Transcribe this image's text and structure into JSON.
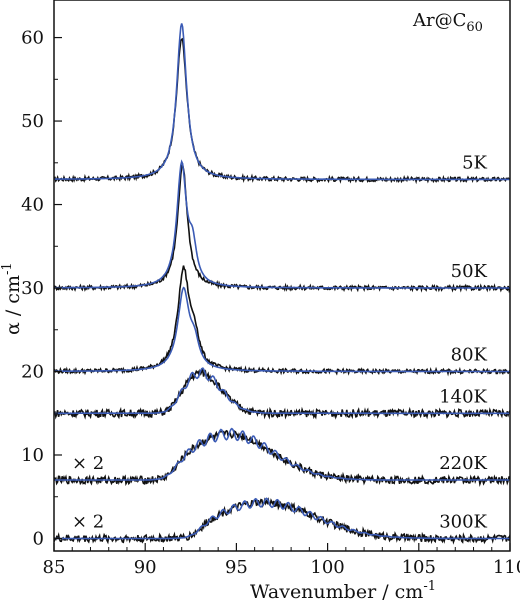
{
  "chart_data": {
    "type": "line",
    "title": "",
    "annotation_title": "Ar@C",
    "annotation_title_sub": "60",
    "xlabel": "Wavenumber / cm",
    "xlabel_sup": "-1",
    "ylabel": "α / cm",
    "ylabel_sup": "-1",
    "xlim": [
      85,
      110
    ],
    "ylim": [
      -1.5,
      64.5
    ],
    "xticks": [
      85,
      90,
      95,
      100,
      105,
      110
    ],
    "yticks": [
      0,
      10,
      20,
      30,
      40,
      50,
      60
    ],
    "grid": false,
    "legend": "none",
    "series_colors": {
      "measured": "#111111",
      "model": "#3b5bb5"
    },
    "traces": [
      {
        "temperature": "5K",
        "baseline": 43.0,
        "multiplier": "",
        "measured": {
          "center": 92.0,
          "width": 0.35,
          "amplitude": 17.0,
          "shape": "single"
        },
        "model": {
          "center": 92.0,
          "width": 0.33,
          "amplitude": 18.7,
          "shape": "single"
        }
      },
      {
        "temperature": "50K",
        "baseline": 30.0,
        "multiplier": "",
        "measured": {
          "center": 92.05,
          "width": 0.32,
          "amplitude": 14.7,
          "shape": "single"
        },
        "model": {
          "center": 92.0,
          "width": 0.32,
          "amplitude": 14.5,
          "shape": "split"
        }
      },
      {
        "temperature": "80K",
        "baseline": 20.0,
        "multiplier": "",
        "measured": {
          "center": 92.1,
          "width": 0.38,
          "amplitude": 11.8,
          "shape": "split"
        },
        "model": {
          "center": 92.1,
          "width": 0.38,
          "amplitude": 9.5,
          "shape": "split"
        }
      },
      {
        "temperature": "140K",
        "baseline": 15.0,
        "multiplier": "",
        "measured": {
          "center": 93.0,
          "width": 1.6,
          "amplitude": 4.9,
          "shape": "broad"
        },
        "model": {
          "center": 93.0,
          "width": 1.6,
          "amplitude": 4.9,
          "shape": "broad-oscillating"
        }
      },
      {
        "temperature": "220K",
        "baseline": 7.0,
        "multiplier": "× 2",
        "measured": {
          "center": 94.6,
          "width": 3.4,
          "amplitude": 5.5,
          "shape": "broad"
        },
        "model": {
          "center": 94.6,
          "width": 3.4,
          "amplitude": 5.5,
          "shape": "broad-oscillating"
        }
      },
      {
        "temperature": "300K",
        "baseline": 0.0,
        "multiplier": "× 2",
        "measured": {
          "center": 96.5,
          "width": 4.0,
          "amplitude": 4.3,
          "shape": "broad"
        },
        "model": {
          "center": 96.5,
          "width": 4.0,
          "amplitude": 4.3,
          "shape": "broad-oscillating"
        }
      }
    ]
  }
}
